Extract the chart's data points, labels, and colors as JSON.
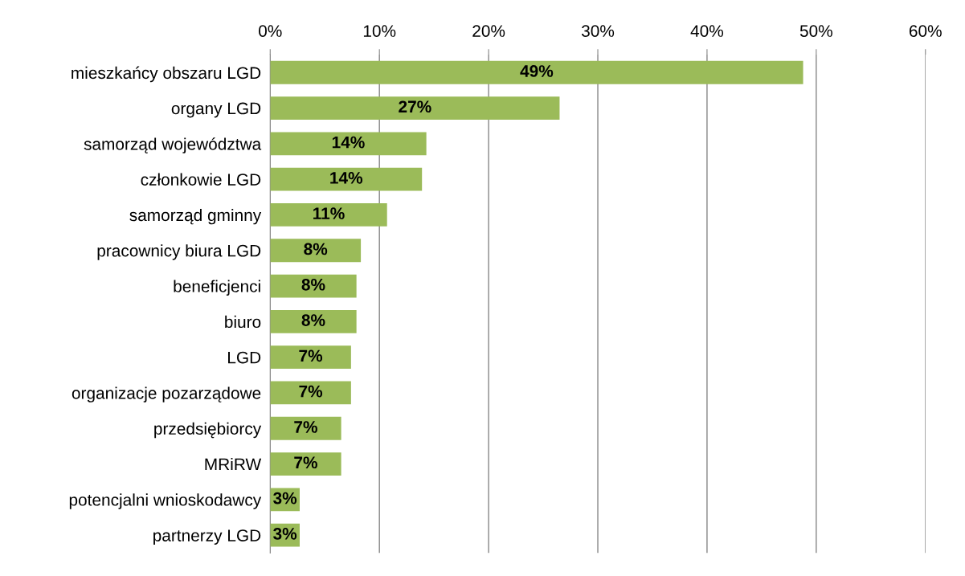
{
  "chart_data": {
    "type": "bar",
    "orientation": "horizontal",
    "categories": [
      "mieszkańcy obszaru LGD",
      "organy LGD",
      "samorząd województwa",
      "członkowie LGD",
      "samorząd gminny",
      "pracownicy biura LGD",
      "beneficjenci",
      "biuro",
      "LGD",
      "organizacje pozarządowe",
      "przedsiębiorcy",
      "MRiRW",
      "potencjalni wnioskodawcy",
      "partnerzy LGD"
    ],
    "values": [
      48.8,
      26.5,
      14.3,
      13.9,
      10.7,
      8.3,
      7.9,
      7.9,
      7.4,
      7.4,
      6.5,
      6.5,
      2.7,
      2.7
    ],
    "value_labels": [
      "49%",
      "27%",
      "14%",
      "14%",
      "11%",
      "8%",
      "8%",
      "8%",
      "7%",
      "7%",
      "7%",
      "7%",
      "3%",
      "3%"
    ],
    "color": "#9bbb59",
    "xlim": [
      0,
      60
    ],
    "xticks": [
      {
        "value": 0,
        "label": "0%"
      },
      {
        "value": 10,
        "label": "10%"
      },
      {
        "value": 20,
        "label": "20%"
      },
      {
        "value": 30,
        "label": "30%"
      },
      {
        "value": 40,
        "label": "40%"
      },
      {
        "value": 50,
        "label": "50%"
      },
      {
        "value": 60,
        "label": "60%"
      }
    ],
    "grid": "x"
  }
}
